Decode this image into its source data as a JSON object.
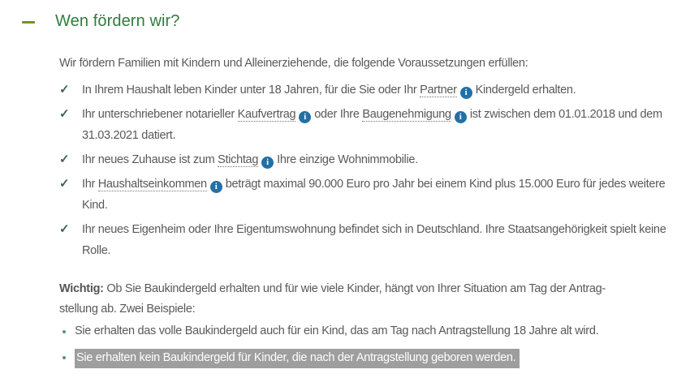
{
  "accordion": {
    "title": "Wen fördern wir?",
    "state": "expanded"
  },
  "icons": {
    "collapse": "minus",
    "check": "✓",
    "info": "i"
  },
  "colors": {
    "heading_green": "#2f7d3b",
    "toggle_olive": "#73941f",
    "check_teal": "#3e5f6d",
    "info_blue": "#2270a6",
    "body_text": "#595959",
    "selection_gray": "#9e9e9e"
  },
  "intro": "Wir fördern Familien mit Kindern und Alleinerziehende, die folgende Voraussetzungen erfüllen:",
  "checklist": [
    {
      "segments": [
        {
          "type": "text",
          "text": "In Ihrem Haushalt leben Kinder unter 18 Jahren, für die Sie oder Ihr "
        },
        {
          "type": "link",
          "name": "partner",
          "text": "Partner"
        },
        {
          "type": "info"
        },
        {
          "type": "text",
          "text": "Kindergeld erhalten."
        }
      ]
    },
    {
      "segments": [
        {
          "type": "text",
          "text": "Ihr unterschriebener notarieller "
        },
        {
          "type": "link",
          "name": "kaufvertrag",
          "text": "Kaufvertrag"
        },
        {
          "type": "info"
        },
        {
          "type": "text",
          "text": "oder Ihre "
        },
        {
          "type": "link",
          "name": "baugenehmigung",
          "text": "Baugenehmigung"
        },
        {
          "type": "info"
        },
        {
          "type": "text",
          "text": "ist zwischen dem 01.01.2018 und dem 31.03.2021 datiert."
        }
      ]
    },
    {
      "segments": [
        {
          "type": "text",
          "text": "Ihr neues Zuhause ist zum "
        },
        {
          "type": "link",
          "name": "stichtag",
          "text": "Stichtag"
        },
        {
          "type": "info"
        },
        {
          "type": "text",
          "text": "Ihre einzige Wohnimmobilie."
        }
      ]
    },
    {
      "segments": [
        {
          "type": "text",
          "text": "Ihr "
        },
        {
          "type": "link",
          "name": "haushaltseinkommen",
          "text": "Haushaltseinkommen"
        },
        {
          "type": "info"
        },
        {
          "type": "text",
          "text": "beträgt maximal 90.000 Euro pro Jahr bei einem Kind plus 15.000 Euro für jedes weitere Kind."
        }
      ]
    },
    {
      "segments": [
        {
          "type": "text",
          "text": "Ihr neues Eigenheim oder Ihre Eigentumswohnung befindet sich in Deutschland. Ihre Staatsangehörigkeit spielt keine Rolle."
        }
      ]
    }
  ],
  "wichtig": {
    "label": "Wichtig:",
    "line1": "Ob Sie Baukindergeld erhalten und für wie viele Kinder, hängt von Ihrer Situation am Tag der Antrag-",
    "line2": "stellung ab. Zwei Beispiele:"
  },
  "examples": [
    {
      "text": "Sie erhalten das volle Baukindergeld auch für ein Kind, das am Tag nach Antragstellung 18 Jahre alt wird.",
      "highlighted": false
    },
    {
      "text": "Sie erhalten kein Baukindergeld für Kinder, die nach der Antragstellung geboren werden.",
      "highlighted": true
    }
  ]
}
